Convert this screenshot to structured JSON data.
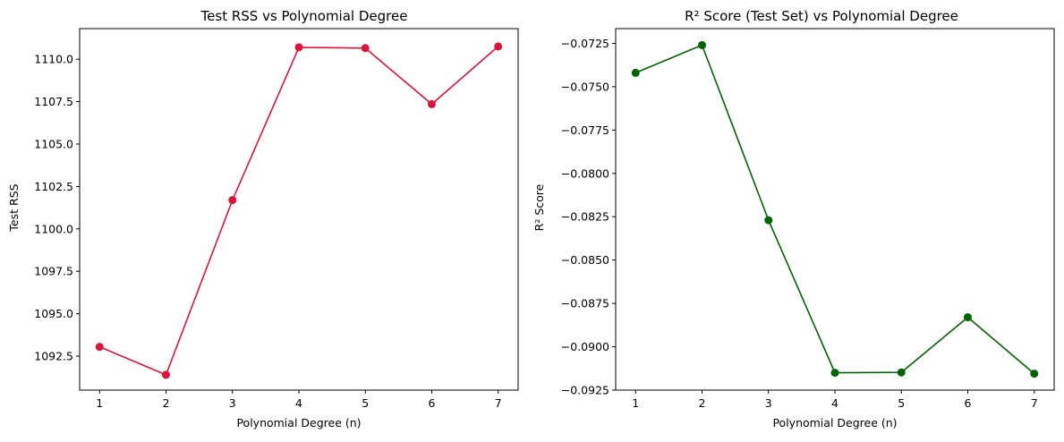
{
  "chart_data": [
    {
      "type": "line",
      "title": "Test RSS vs Polynomial Degree",
      "xlabel": "Polynomial Degree (n)",
      "ylabel": "Test RSS",
      "x": [
        1,
        2,
        3,
        4,
        5,
        6,
        7
      ],
      "xticks": [
        "1",
        "2",
        "3",
        "4",
        "5",
        "6",
        "7"
      ],
      "xlim": [
        0.7,
        7.3
      ],
      "ylim": [
        1090.5,
        1111.8
      ],
      "yticks": [
        1092.5,
        1095.0,
        1097.5,
        1100.0,
        1102.5,
        1105.0,
        1107.5,
        1110.0
      ],
      "ytick_labels": [
        "1092.5",
        "1095.0",
        "1097.5",
        "1100.0",
        "1102.5",
        "1105.0",
        "1107.5",
        "1110.0"
      ],
      "series": [
        {
          "color": "#dc143c",
          "marker": "circle",
          "values": [
            1093.05,
            1091.4,
            1101.7,
            1110.7,
            1110.65,
            1107.35,
            1110.75
          ]
        }
      ],
      "grid": false,
      "legend": "none"
    },
    {
      "type": "line",
      "title": "R² Score (Test Set) vs Polynomial Degree",
      "xlabel": "Polynomial Degree (n)",
      "ylabel": "R² Score",
      "x": [
        1,
        2,
        3,
        4,
        5,
        6,
        7
      ],
      "xticks": [
        "1",
        "2",
        "3",
        "4",
        "5",
        "6",
        "7"
      ],
      "xlim": [
        0.7,
        7.3
      ],
      "ylim": [
        -0.0925,
        -0.07165
      ],
      "yticks": [
        -0.0925,
        -0.09,
        -0.0875,
        -0.085,
        -0.0825,
        -0.08,
        -0.0775,
        -0.075,
        -0.0725
      ],
      "ytick_labels": [
        "−0.0925",
        "−0.0900",
        "−0.0875",
        "−0.0850",
        "−0.0825",
        "−0.0800",
        "−0.0775",
        "−0.0750",
        "−0.0725"
      ],
      "series": [
        {
          "color": "#006400",
          "marker": "circle",
          "values": [
            -0.0742,
            -0.0726,
            -0.0827,
            -0.0915,
            -0.09148,
            -0.0883,
            -0.09155
          ]
        }
      ],
      "grid": false,
      "legend": "none"
    }
  ]
}
